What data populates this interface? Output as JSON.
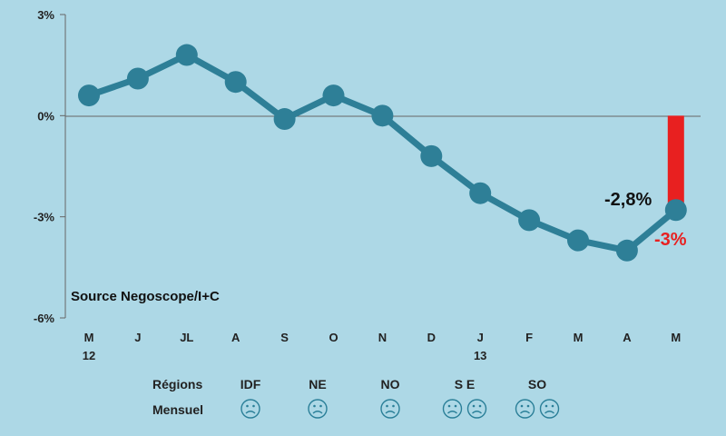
{
  "chart_data": {
    "type": "line",
    "categories": [
      "M",
      "J",
      "JL",
      "A",
      "S",
      "O",
      "N",
      "D",
      "J",
      "F",
      "M",
      "A",
      "M"
    ],
    "category_sublabels": [
      "12",
      "",
      "",
      "",
      "",
      "",
      "",
      "",
      "13",
      "",
      "",
      "",
      ""
    ],
    "series": [
      {
        "values": [
          0.6,
          1.1,
          1.8,
          1.0,
          -0.1,
          0.6,
          0.0,
          -1.2,
          -2.3,
          -3.1,
          -3.7,
          -4.0,
          -2.8
        ]
      }
    ],
    "bar": {
      "category_index": 12,
      "value": -2.6
    },
    "ylim": [
      -6,
      3
    ],
    "y_ticks": [
      3,
      0,
      -3,
      -6
    ],
    "y_tick_labels": [
      "3%",
      "0%",
      "-3%",
      "-6%"
    ],
    "annotations": [
      {
        "text": "-2,8%",
        "color": "#111111"
      },
      {
        "text": "-3%",
        "color": "#e82020"
      }
    ],
    "source_note": "Source Negoscope/I+C",
    "colors": {
      "line": "#2e7f97",
      "bar": "#e82020",
      "background": "#add8e6"
    }
  },
  "footer": {
    "row1_label": "Régions",
    "row2_label": "Mensuel",
    "regions": [
      {
        "label": "IDF",
        "faces": 1
      },
      {
        "label": "NE",
        "faces": 1
      },
      {
        "label": "NO",
        "faces": 1
      },
      {
        "label": "S E",
        "faces": 2
      },
      {
        "label": "SO",
        "faces": 2
      }
    ],
    "face_icon": "sad-face-icon"
  }
}
